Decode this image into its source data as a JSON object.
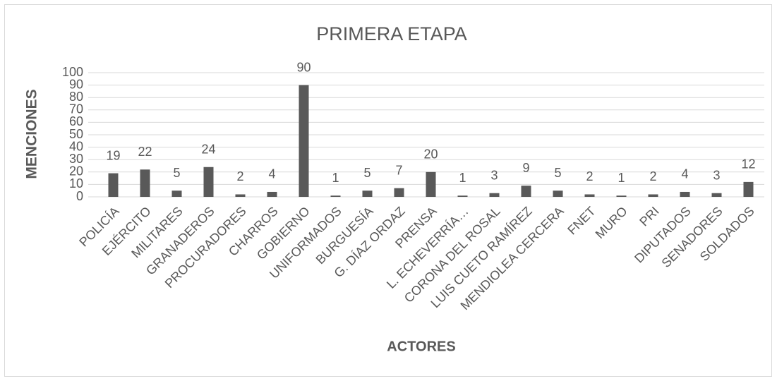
{
  "chart_data": {
    "type": "bar",
    "title": "PRIMERA ETAPA",
    "y_label": "MENCIONES",
    "x_label": "ACTORES",
    "categories": [
      "POLICÍA",
      "EJÉRCITO",
      "MILITARES",
      "GRANADEROS",
      "PROCURADORES",
      "CHARROS",
      "GOBIERNO",
      "UNIFORMADOS",
      "BURGUESÍA",
      "G. DÍAZ ORDAZ",
      "PRENSA",
      "L. ECHEVERRÍA…",
      "CORONA DEL ROSAL",
      "LUIS CUETO RAMÍREZ",
      "MENDIOLEA CERCERA",
      "FNET",
      "MURO",
      "PRI",
      "DIPUTADOS",
      "SENADORES",
      "SOLDADOS"
    ],
    "values": [
      19,
      22,
      5,
      24,
      2,
      4,
      90,
      1,
      5,
      7,
      20,
      1,
      3,
      9,
      5,
      2,
      1,
      2,
      4,
      3,
      12
    ],
    "color": "#595959",
    "ylim": [
      0,
      100
    ],
    "yticks": [
      0,
      10,
      20,
      30,
      40,
      50,
      60,
      70,
      80,
      90,
      100
    ],
    "grid": true
  }
}
